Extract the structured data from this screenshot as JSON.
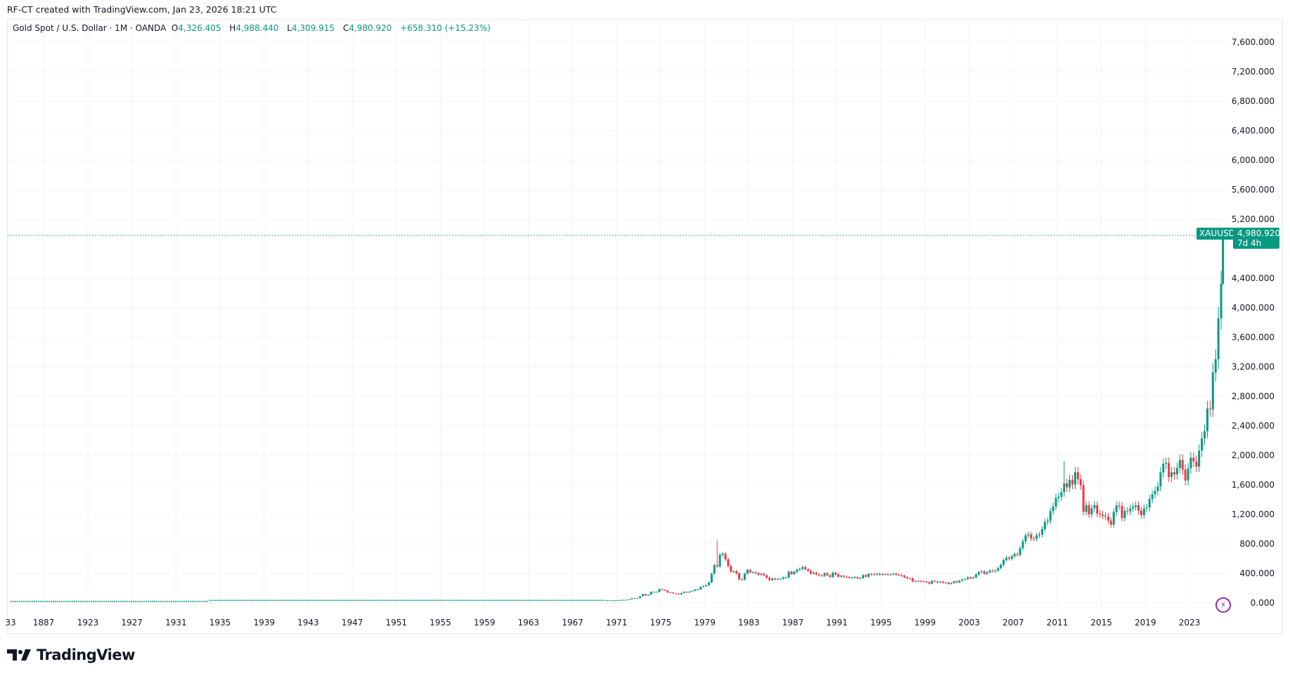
{
  "header": {
    "credit": "RF-CT created with TradingView.com, Jan 23, 2026 18:21 UTC"
  },
  "legend": {
    "title": "Gold Spot / U.S. Dollar · 1M · OANDA",
    "o_label": "O",
    "o": "4,326.405",
    "h_label": "H",
    "h": "4,988.440",
    "l_label": "L",
    "l": "4,309.915",
    "c_label": "C",
    "c": "4,980.920",
    "change": "+658.310 (+15.23%)"
  },
  "price_label": {
    "symbol": "XAUUSD",
    "price": "4,980.920",
    "countdown": "7d 4h"
  },
  "brand": {
    "name": "TradingView"
  },
  "icons": {
    "alert": "lightning-icon",
    "logo": "tradingview-logo"
  },
  "colors": {
    "up": "#089981",
    "down": "#f23645",
    "grid": "#f0f3fa",
    "alert": "#9c27b0"
  },
  "chart_data": {
    "type": "candlestick",
    "interval": "1M",
    "symbol": "XAUUSD",
    "ylim": [
      0,
      7600
    ],
    "y_ticks": [
      "7,600.000",
      "7,200.000",
      "6,800.000",
      "6,400.000",
      "6,000.000",
      "5,600.000",
      "5,200.000",
      "4,400.000",
      "4,000.000",
      "3,600.000",
      "3,200.000",
      "2,800.000",
      "2,400.000",
      "2,000.000",
      "1,600.000",
      "1,200.000",
      "800.000",
      "400.000",
      "0.000"
    ],
    "x_ticks": [
      "33",
      "1887",
      "1923",
      "1927",
      "1931",
      "1935",
      "1939",
      "1943",
      "1947",
      "1951",
      "1955",
      "1959",
      "1963",
      "1967",
      "1971",
      "1975",
      "1979",
      "1983",
      "1987",
      "1991",
      "1995",
      "1999",
      "2003",
      "2007",
      "2011",
      "2015",
      "2019",
      "2023"
    ],
    "grid": true,
    "early_levels": [
      {
        "from": 1833,
        "to": 1933,
        "price": 20.67
      },
      {
        "from": 1934,
        "to": 1969,
        "price": 35
      }
    ],
    "quarterly_closes_from_1970": [
      35,
      36,
      36,
      37,
      38,
      40,
      42,
      43,
      48,
      62,
      65,
      64,
      90,
      120,
      100,
      112,
      150,
      150,
      150,
      187,
      177,
      166,
      142,
      140,
      130,
      125,
      115,
      134,
      150,
      142,
      155,
      165,
      181,
      183,
      217,
      226,
      240,
      277,
      397,
      512,
      494,
      653,
      666,
      590,
      500,
      422,
      428,
      400,
      320,
      315,
      397,
      447,
      414,
      416,
      405,
      382,
      394,
      374,
      343,
      309,
      330,
      317,
      326,
      327,
      345,
      345,
      423,
      391,
      421,
      448,
      460,
      484,
      457,
      436,
      397,
      410,
      385,
      373,
      367,
      401,
      374,
      352,
      408,
      386,
      356,
      367,
      354,
      353,
      341,
      343,
      349,
      333,
      337,
      377,
      355,
      391,
      389,
      386,
      394,
      383,
      391,
      387,
      384,
      387,
      396,
      382,
      379,
      369,
      348,
      334,
      332,
      290,
      297,
      296,
      294,
      288,
      280,
      261,
      299,
      290,
      278,
      288,
      273,
      274,
      258,
      270,
      293,
      278,
      301,
      318,
      323,
      347,
      334,
      346,
      385,
      417,
      427,
      395,
      415,
      438,
      428,
      437,
      473,
      517,
      582,
      613,
      599,
      632,
      662,
      650,
      743,
      834,
      916,
      930,
      872,
      869,
      916,
      927,
      1000,
      1096,
      1113,
      1244,
      1307,
      1421,
      1439,
      1500,
      1620,
      1565,
      1668,
      1604,
      1772,
      1675,
      1595,
      1234,
      1326,
      1202,
      1284,
      1327,
      1211,
      1199,
      1183,
      1172,
      1115,
      1060,
      1232,
      1321,
      1315,
      1151,
      1249,
      1242,
      1280,
      1302,
      1324,
      1252,
      1192,
      1282,
      1292,
      1409,
      1472,
      1517,
      1577,
      1768,
      1886,
      1898,
      1707,
      1770,
      1742,
      1829,
      1937,
      1807,
      1660,
      1824,
      1969,
      1919,
      1848,
      2063,
      2230,
      2327,
      2634,
      2624,
      3124,
      3303,
      3858,
      4326
    ],
    "last_candle": {
      "period": "2026-01",
      "open": 4326.405,
      "high": 4988.44,
      "low": 4309.915,
      "close": 4980.92
    },
    "notable_highs": {
      "1980": 850,
      "2011": 1920
    }
  }
}
